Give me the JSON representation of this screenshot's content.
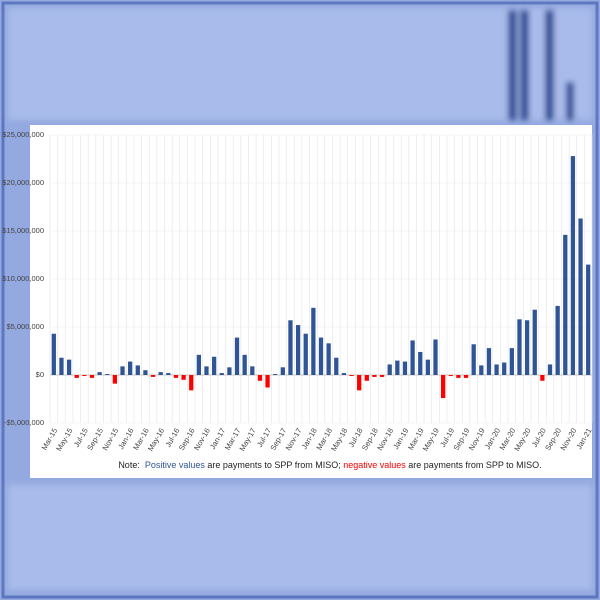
{
  "chart_data": {
    "type": "bar",
    "categories": [
      "Mar-15",
      null,
      "May-15",
      null,
      "Jul-15",
      null,
      "Sep-15",
      null,
      "Nov-15",
      null,
      "Jan-16",
      null,
      "Mar-16",
      null,
      "May-16",
      null,
      "Jul-16",
      null,
      "Sep-16",
      null,
      "Nov-16",
      null,
      "Jan-17",
      null,
      "Mar-17",
      null,
      "May-17",
      null,
      "Jul-17",
      null,
      "Sep-17",
      null,
      "Nov-17",
      null,
      "Jan-18",
      null,
      "Mar-18",
      null,
      "May-18",
      null,
      "Jul-18",
      null,
      "Sep-18",
      null,
      "Nov-18",
      null,
      "Jan-19",
      null,
      "Mar-19",
      null,
      "May-19",
      null,
      "Jul-19",
      null,
      "Sep-19",
      null,
      "Nov-19",
      null,
      "Jan-20",
      null,
      "Mar-20",
      null,
      "May-20",
      null,
      "Jul-20",
      null,
      "Sep-20",
      null,
      "Nov-20",
      null,
      "Jan-21"
    ],
    "values": [
      4300000,
      1800000,
      1600000,
      -300000,
      -100000,
      -300000,
      300000,
      100000,
      -900000,
      900000,
      1400000,
      1000000,
      500000,
      -200000,
      300000,
      200000,
      -300000,
      -500000,
      -1600000,
      2100000,
      900000,
      1900000,
      200000,
      800000,
      3900000,
      2100000,
      900000,
      -600000,
      -1300000,
      100000,
      800000,
      5700000,
      5200000,
      4300000,
      7000000,
      3900000,
      3300000,
      1800000,
      200000,
      -100000,
      -1600000,
      -600000,
      -200000,
      -200000,
      1100000,
      1500000,
      1400000,
      3600000,
      2400000,
      1600000,
      3700000,
      -2400000,
      -100000,
      -300000,
      -300000,
      3200000,
      1000000,
      2800000,
      1100000,
      1300000,
      2800000,
      5800000,
      5700000,
      6800000,
      -600000,
      1100000,
      7200000,
      14600000,
      22800000,
      16300000,
      11500000
    ],
    "positive_color": "#2f5597",
    "negative_color": "#ff0000",
    "ylim": [
      -5000000,
      25000000
    ],
    "yticks": [
      {
        "value": -5000000,
        "label": "-$5,000,000"
      },
      {
        "value": 0,
        "label": "$0"
      },
      {
        "value": 5000000,
        "label": "$5,000,000"
      },
      {
        "value": 10000000,
        "label": "$10,000,000"
      },
      {
        "value": 15000000,
        "label": "$15,000,000"
      },
      {
        "value": 20000000,
        "label": "$20,000,000"
      },
      {
        "value": 25000000,
        "label": "$25,000,000"
      }
    ],
    "grid": true,
    "note": [
      {
        "text": "Note:  ",
        "color": "#222222"
      },
      {
        "text": "Positive values",
        "color": "#2f5597"
      },
      {
        "text": " are payments to SPP from MISO; ",
        "color": "#222222"
      },
      {
        "text": "negative values",
        "color": "#ff0000"
      },
      {
        "text": " are payments from SPP to MISO.",
        "color": "#222222"
      }
    ]
  }
}
